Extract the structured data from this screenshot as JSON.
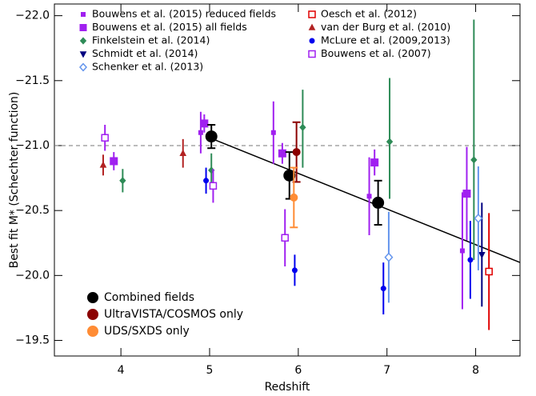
{
  "chart_data": {
    "type": "scatter",
    "xlabel": "Redshift",
    "ylabel": "Best fit M* (Schechter function)",
    "xlim": [
      3.25,
      8.5
    ],
    "ylim": [
      -19.38,
      -22.09
    ],
    "xticks": [
      4,
      5,
      6,
      7,
      8
    ],
    "yticks": [
      {
        "value": -19.5,
        "label": "−19.5"
      },
      {
        "value": -20.0,
        "label": "−20.0"
      },
      {
        "value": -20.5,
        "label": "−20.5"
      },
      {
        "value": -21.0,
        "label": "−21.0"
      },
      {
        "value": -21.5,
        "label": "−21.5"
      },
      {
        "value": -22.0,
        "label": "−22.0"
      }
    ],
    "reference_line": -21.0,
    "fit_line": {
      "x": [
        5.0,
        8.5
      ],
      "y": [
        -21.06,
        -20.1
      ]
    },
    "series": [
      {
        "name": "Bouwens et al. (2015) reduced fields",
        "color": "#a020f0",
        "marker": "square",
        "marker_size": 5,
        "legend": "top",
        "x": [
          4.9,
          5.72,
          6.8,
          7.85
        ],
        "values": [
          -21.1,
          -21.1,
          -20.61,
          -20.19
        ],
        "err_low": [
          0.16,
          0.24,
          0.3,
          0.45
        ],
        "err_high": [
          0.16,
          0.24,
          0.3,
          0.45
        ]
      },
      {
        "name": "Bouwens et al. (2015) all fields",
        "color": "#a020f0",
        "marker": "square",
        "marker_size": 9,
        "legend": "top",
        "x": [
          3.92,
          4.94,
          5.82,
          6.86,
          7.9
        ],
        "values": [
          -20.88,
          -21.17,
          -20.94,
          -20.87,
          -20.63
        ],
        "err_low": [
          0.07,
          0.07,
          0.08,
          0.1,
          0.36
        ],
        "err_high": [
          0.07,
          0.07,
          0.08,
          0.1,
          0.36
        ]
      },
      {
        "name": "Finkelstein et al. (2014)",
        "color": "#2e8b57",
        "marker": "diamond",
        "marker_size": 7,
        "legend": "top",
        "x": [
          4.02,
          5.02,
          6.05,
          7.03,
          7.98
        ],
        "values": [
          -20.73,
          -20.81,
          -21.14,
          -21.03,
          -20.89
        ],
        "err_low": [
          0.09,
          0.13,
          0.29,
          0.49,
          1.08
        ],
        "err_high": [
          0.09,
          0.13,
          0.31,
          0.44,
          0.77
        ]
      },
      {
        "name": "Schmidt et al. (2014)",
        "color": "#000080",
        "marker": "triangle-down",
        "marker_size": 7,
        "legend": "top",
        "x": [
          8.07
        ],
        "values": [
          -20.16
        ],
        "err_low": [
          0.4
        ],
        "err_high": [
          0.4
        ]
      },
      {
        "name": "Schenker et al. (2013)",
        "color": "#6495ed",
        "marker": "diamond-open",
        "marker_size": 9,
        "legend": "top",
        "x": [
          7.02,
          8.03
        ],
        "values": [
          -20.14,
          -20.44
        ],
        "err_low": [
          0.35,
          0.4
        ],
        "err_high": [
          0.35,
          0.4
        ]
      },
      {
        "name": "Oesch et al. (2012)",
        "color": "#e00000",
        "marker": "square-open",
        "marker_size": 8,
        "legend": "top",
        "x": [
          8.15
        ],
        "values": [
          -20.03
        ],
        "err_low": [
          0.45
        ],
        "err_high": [
          0.45
        ]
      },
      {
        "name": "van der Burg et al. (2010)",
        "color": "#b22222",
        "marker": "triangle",
        "marker_size": 7,
        "legend": "top",
        "x": [
          3.8,
          4.7
        ],
        "values": [
          -20.85,
          -20.94
        ],
        "err_low": [
          0.08,
          0.11
        ],
        "err_high": [
          0.08,
          0.11
        ]
      },
      {
        "name": "McLure et al. (2009,2013)",
        "color": "#0000ee",
        "marker": "circle",
        "marker_size": 6,
        "legend": "top",
        "x": [
          4.96,
          5.96,
          6.96,
          7.94
        ],
        "values": [
          -20.73,
          -20.04,
          -19.9,
          -20.12
        ],
        "err_low": [
          0.1,
          0.12,
          0.2,
          0.3
        ],
        "err_high": [
          0.1,
          0.12,
          0.2,
          0.3
        ]
      },
      {
        "name": "Bouwens et al. (2007)",
        "color": "#a020f0",
        "marker": "square-open",
        "marker_size": 8,
        "legend": "top",
        "x": [
          3.82,
          5.04,
          5.85
        ],
        "values": [
          -21.06,
          -20.69,
          -20.29
        ],
        "err_low": [
          0.1,
          0.13,
          0.22
        ],
        "err_high": [
          0.1,
          0.13,
          0.22
        ]
      },
      {
        "name": "Combined fields",
        "color": "#000000",
        "marker": "circle",
        "marker_size": 14,
        "legend": "bottom",
        "caps": true,
        "x": [
          5.02,
          5.9,
          6.9
        ],
        "values": [
          -21.07,
          -20.77,
          -20.56
        ],
        "err_low": [
          0.09,
          0.18,
          0.17
        ],
        "err_high": [
          0.09,
          0.18,
          0.17
        ]
      },
      {
        "name": "UltraVISTA/COSMOS only",
        "color": "#8b0000",
        "marker": "circle",
        "marker_size": 9,
        "legend": "bottom",
        "caps": true,
        "x": [
          5.98
        ],
        "values": [
          -20.95
        ],
        "err_low": [
          0.23
        ],
        "err_high": [
          0.23
        ]
      },
      {
        "name": "UDS/SXDS only",
        "color": "#ff8c35",
        "marker": "circle",
        "marker_size": 9,
        "legend": "bottom",
        "caps": true,
        "x": [
          5.95
        ],
        "values": [
          -20.6
        ],
        "err_low": [
          0.23
        ],
        "err_high": [
          0.23
        ]
      }
    ]
  }
}
